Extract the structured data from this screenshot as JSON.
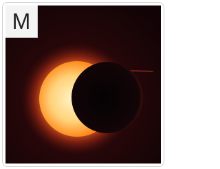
{
  "label": "M"
}
